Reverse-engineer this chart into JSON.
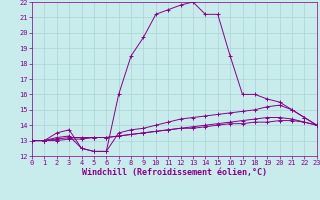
{
  "xlabel": "Windchill (Refroidissement éolien,°C)",
  "bg_color": "#c8ecec",
  "grid_color": "#aad4d4",
  "line_color": "#880088",
  "xlim": [
    0,
    23
  ],
  "ylim": [
    12,
    22
  ],
  "xticks": [
    0,
    1,
    2,
    3,
    4,
    5,
    6,
    7,
    8,
    9,
    10,
    11,
    12,
    13,
    14,
    15,
    16,
    17,
    18,
    19,
    20,
    21,
    22,
    23
  ],
  "yticks": [
    12,
    13,
    14,
    15,
    16,
    17,
    18,
    19,
    20,
    21,
    22
  ],
  "line1_x": [
    0,
    1,
    2,
    3,
    4,
    5,
    6,
    7,
    8,
    9,
    10,
    11,
    12,
    13,
    14,
    15,
    16,
    17,
    18,
    19,
    20,
    21,
    22,
    23
  ],
  "line1_y": [
    13.0,
    13.0,
    13.5,
    13.7,
    12.5,
    12.3,
    12.3,
    16.0,
    18.5,
    19.7,
    21.2,
    21.5,
    21.8,
    22.0,
    21.2,
    21.2,
    18.5,
    16.0,
    16.0,
    15.7,
    15.5,
    15.0,
    14.5,
    14.0
  ],
  "line2_x": [
    0,
    1,
    2,
    3,
    4,
    5,
    6,
    7,
    8,
    9,
    10,
    11,
    12,
    13,
    14,
    15,
    16,
    17,
    18,
    19,
    20,
    21,
    22,
    23
  ],
  "line2_y": [
    13.0,
    13.0,
    13.2,
    13.3,
    12.5,
    12.3,
    12.3,
    13.5,
    13.7,
    13.8,
    14.0,
    14.2,
    14.4,
    14.5,
    14.6,
    14.7,
    14.8,
    14.9,
    15.0,
    15.2,
    15.3,
    15.0,
    14.5,
    14.0
  ],
  "line3_x": [
    0,
    1,
    2,
    3,
    4,
    5,
    6,
    7,
    8,
    9,
    10,
    11,
    12,
    13,
    14,
    15,
    16,
    17,
    18,
    19,
    20,
    21,
    22,
    23
  ],
  "line3_y": [
    13.0,
    13.0,
    13.1,
    13.2,
    13.2,
    13.2,
    13.2,
    13.3,
    13.4,
    13.5,
    13.6,
    13.7,
    13.8,
    13.9,
    14.0,
    14.1,
    14.2,
    14.3,
    14.4,
    14.5,
    14.5,
    14.4,
    14.2,
    14.0
  ],
  "line4_x": [
    0,
    1,
    2,
    3,
    4,
    5,
    6,
    7,
    8,
    9,
    10,
    11,
    12,
    13,
    14,
    15,
    16,
    17,
    18,
    19,
    20,
    21,
    22,
    23
  ],
  "line4_y": [
    13.0,
    13.0,
    13.0,
    13.1,
    13.1,
    13.2,
    13.2,
    13.3,
    13.4,
    13.5,
    13.6,
    13.7,
    13.8,
    13.8,
    13.9,
    14.0,
    14.1,
    14.1,
    14.2,
    14.2,
    14.3,
    14.3,
    14.2,
    14.0
  ],
  "tick_fontsize": 5.0,
  "xlabel_fontsize": 6.0
}
